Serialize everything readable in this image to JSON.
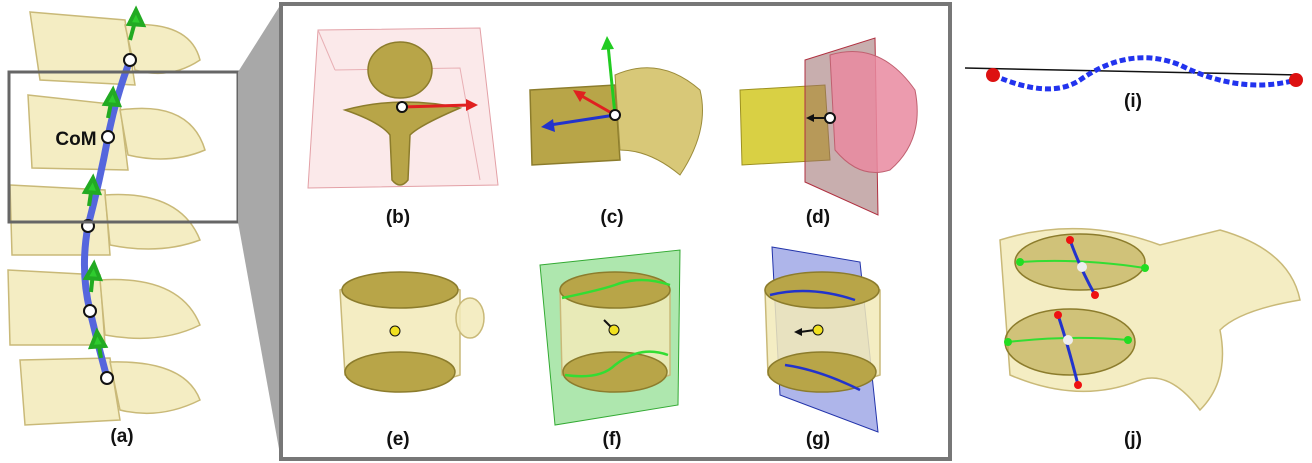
{
  "annotation": "CoM",
  "panels": [
    {
      "label": "(a)"
    },
    {
      "label": "(b)"
    },
    {
      "label": "(c)"
    },
    {
      "label": "(d)"
    },
    {
      "label": "(e)"
    },
    {
      "label": "(f)"
    },
    {
      "label": "(g)"
    },
    {
      "label": "(i)"
    },
    {
      "label": "(j)"
    }
  ]
}
